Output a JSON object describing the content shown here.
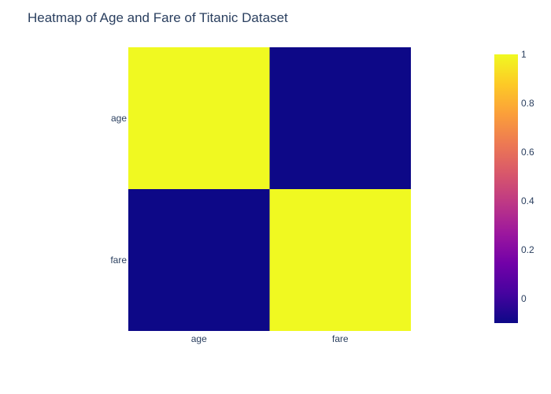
{
  "chart_data": {
    "type": "heatmap",
    "title": "Heatmap of Age and Fare of Titanic Dataset",
    "x_categories": [
      "age",
      "fare"
    ],
    "y_categories": [
      "age",
      "fare"
    ],
    "z": [
      [
        1,
        -0.1
      ],
      [
        -0.1,
        1
      ]
    ],
    "colorscale": {
      "name": "Plasma",
      "range": [
        -0.1,
        1
      ],
      "stops": [
        "#0d0887",
        "#46039f",
        "#7201a8",
        "#9c179e",
        "#bd3786",
        "#d8576b",
        "#ed7953",
        "#fb9f3a",
        "#fdca26",
        "#f0f921"
      ]
    },
    "colorbar": {
      "tick_values": [
        0,
        0.2,
        0.4,
        0.6,
        0.8,
        1
      ],
      "tick_labels": [
        "0",
        "0.2",
        "0.4",
        "0.6",
        "0.8",
        "1"
      ]
    },
    "xlabel": "",
    "ylabel": ""
  }
}
